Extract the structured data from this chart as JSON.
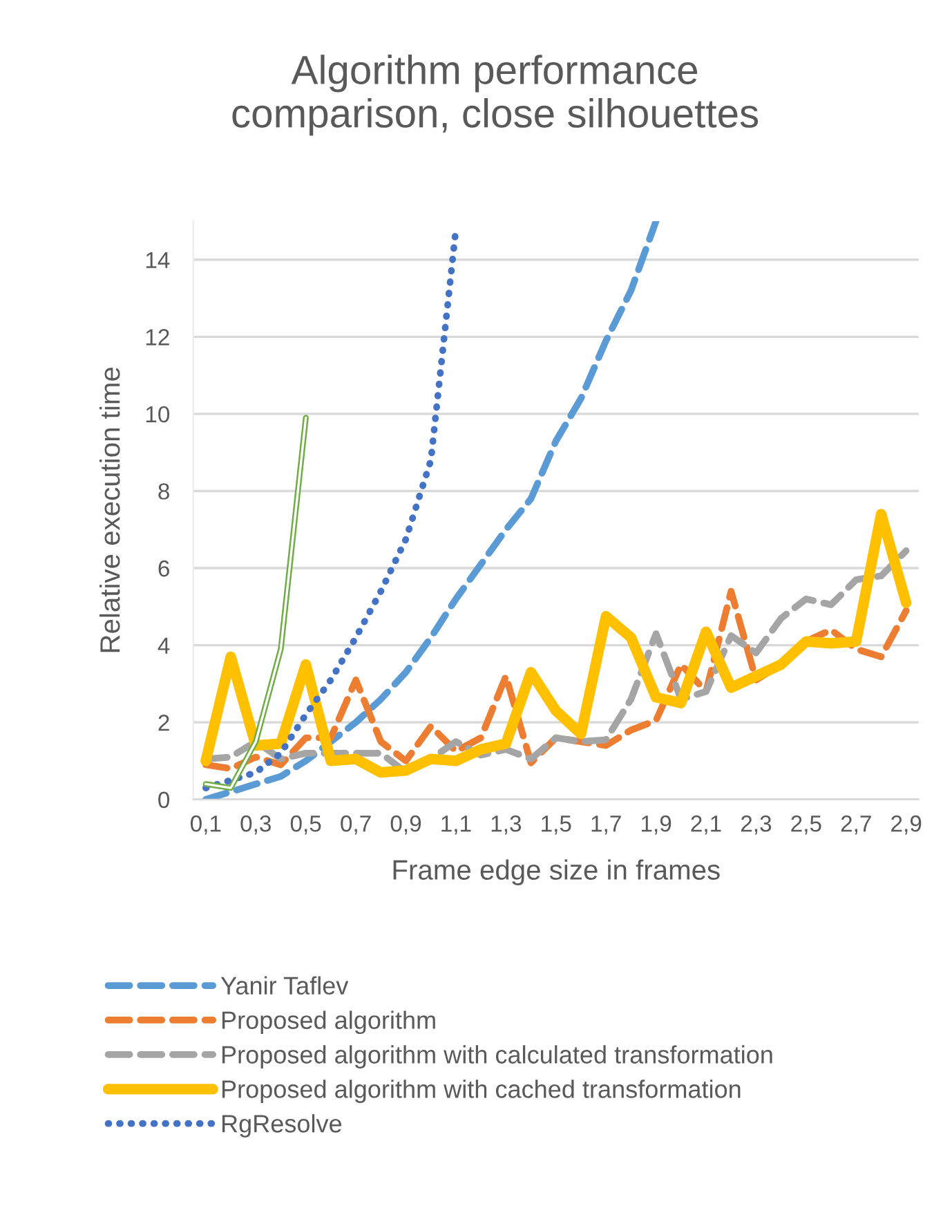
{
  "chart_data": {
    "type": "line",
    "title": "Algorithm performance\ncomparison, close silhouettes",
    "xlabel": "Frame edge size in frames",
    "ylabel": "Relative execution time",
    "categories": [
      "0,1",
      null,
      "0,3",
      null,
      "0,5",
      null,
      "0,7",
      null,
      "0,9",
      null,
      "1,1",
      null,
      "1,3",
      null,
      "1,5",
      null,
      "1,7",
      null,
      "1,9",
      null,
      "2,1",
      null,
      "2,3",
      null,
      "2,5",
      null,
      "2,7",
      null,
      "2,9"
    ],
    "ylim": [
      0,
      15
    ],
    "yticks": [
      0,
      2,
      4,
      6,
      8,
      10,
      12,
      14
    ],
    "grid": "y",
    "legend": "bottom",
    "series": [
      {
        "name": "Yanir Taflev",
        "color": "#5b9bd5",
        "line_style": "dashed",
        "values": [
          0.0,
          0.2,
          0.4,
          0.6,
          1.0,
          1.5,
          2.0,
          2.6,
          3.3,
          4.2,
          5.2,
          6.1,
          7.0,
          7.8,
          9.3,
          10.4,
          11.9,
          13.2,
          15.0,
          null,
          null,
          null,
          null,
          null,
          null,
          null,
          null,
          null,
          null
        ]
      },
      {
        "name": "Proposed algorithm",
        "color": "#ed7d31",
        "line_style": "dashed",
        "values": [
          0.9,
          0.8,
          1.1,
          0.9,
          1.6,
          1.6,
          3.1,
          1.5,
          1.0,
          1.9,
          1.25,
          1.6,
          3.2,
          0.95,
          1.6,
          1.5,
          1.4,
          1.8,
          2.05,
          3.5,
          2.8,
          5.4,
          3.1,
          3.5,
          4.1,
          4.4,
          3.9,
          3.7,
          4.9
        ]
      },
      {
        "name": "Proposed algorithm with calculated transformation",
        "color": "#a5a5a5",
        "line_style": "dashed",
        "values": [
          1.05,
          1.1,
          1.5,
          1.05,
          1.2,
          1.2,
          1.2,
          1.2,
          0.7,
          1.05,
          1.5,
          1.15,
          1.3,
          1.05,
          1.6,
          1.5,
          1.55,
          2.6,
          4.3,
          2.6,
          2.8,
          4.25,
          3.8,
          4.7,
          5.2,
          5.05,
          5.7,
          5.8,
          6.45
        ]
      },
      {
        "name": "Proposed algorithm with cached transformation",
        "color": "#ffc000",
        "line_style": "solid",
        "values": [
          1.0,
          3.7,
          1.4,
          1.45,
          3.5,
          1.0,
          1.05,
          0.7,
          0.75,
          1.05,
          1.0,
          1.3,
          1.45,
          3.3,
          2.3,
          1.7,
          4.75,
          4.2,
          2.65,
          2.5,
          4.35,
          2.9,
          3.2,
          3.5,
          4.1,
          4.05,
          4.1,
          7.4,
          5.1
        ]
      },
      {
        "name": "RgResolve",
        "color": "#4472c4",
        "line_style": "dotted",
        "values": [
          0.3,
          0.5,
          0.7,
          1.2,
          2.2,
          3.1,
          4.2,
          5.4,
          6.75,
          8.8,
          14.8,
          null,
          null,
          null,
          null,
          null,
          null,
          null,
          null,
          null,
          null,
          null,
          null,
          null,
          null,
          null,
          null,
          null,
          null
        ]
      },
      {
        "color": "#70ad47",
        "line_style": "solid",
        "values": [
          0.4,
          0.3,
          1.5,
          3.9,
          9.9,
          null,
          null,
          null,
          null,
          null,
          null,
          null,
          null,
          null,
          null,
          null,
          null,
          null,
          null,
          null,
          null,
          null,
          null,
          null,
          null,
          null,
          null,
          null,
          null
        ]
      }
    ]
  }
}
